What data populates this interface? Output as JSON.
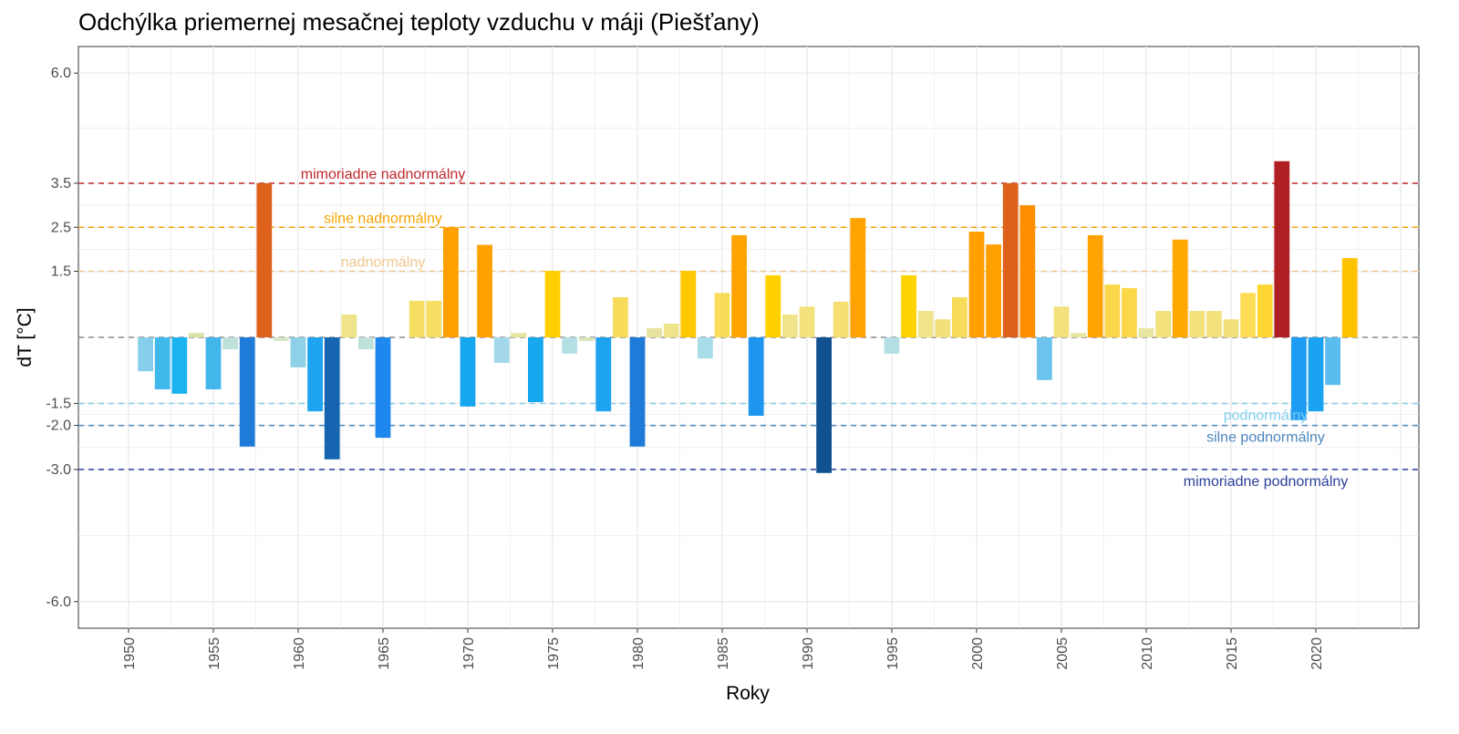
{
  "chart_data": {
    "type": "bar",
    "title": "Odchýlka priemernej mesačnej teploty vzduchu v máji (Piešťany)",
    "xlabel": "Roky",
    "ylabel": "dT [°C]",
    "ylim": [
      -6.6,
      6.6
    ],
    "xlim": [
      1947,
      2026
    ],
    "grid": true,
    "y_ticks": [
      6.0,
      3.5,
      2.5,
      1.5,
      -1.5,
      -2.0,
      -3.0,
      -6.0
    ],
    "y_tick_labels": [
      "6.0",
      "3.5",
      "2.5",
      "1.5",
      "-1.5",
      "-2.0",
      "-3.0",
      "-6.0"
    ],
    "x_ticks": [
      1950,
      1955,
      1960,
      1965,
      1970,
      1975,
      1980,
      1985,
      1990,
      1995,
      2000,
      2005,
      2010,
      2015,
      2020
    ],
    "x_tick_labels": [
      "1950",
      "1955",
      "1960",
      "1965",
      "1970",
      "1975",
      "1980",
      "1985",
      "1990",
      "1995",
      "2000",
      "2005",
      "2010",
      "2015",
      "2020"
    ],
    "thresholds": [
      {
        "value": 3.5,
        "label": "mimoriadne nadnormálny",
        "color": "#c0272d"
      },
      {
        "value": 2.5,
        "label": "silne nadnormálny",
        "color": "#f5a300"
      },
      {
        "value": 1.5,
        "label": "nadnormálny",
        "color": "#f0c890"
      },
      {
        "value": 0,
        "label": "",
        "color": "#888888"
      },
      {
        "value": -1.5,
        "label": "podnormálny",
        "color": "#7fcdee"
      },
      {
        "value": -2.0,
        "label": "silne podnormálny",
        "color": "#4a86be"
      },
      {
        "value": -3.0,
        "label": "mimoriadne podnormálny",
        "color": "#2a3f9a"
      }
    ],
    "x": [
      1951,
      1952,
      1953,
      1954,
      1955,
      1956,
      1957,
      1958,
      1959,
      1960,
      1961,
      1962,
      1963,
      1964,
      1965,
      1967,
      1968,
      1969,
      1970,
      1971,
      1972,
      1973,
      1974,
      1975,
      1976,
      1977,
      1978,
      1979,
      1980,
      1981,
      1982,
      1983,
      1984,
      1985,
      1986,
      1987,
      1988,
      1989,
      1990,
      1991,
      1992,
      1993,
      1995,
      1996,
      1997,
      1998,
      1999,
      2000,
      2001,
      2002,
      2003,
      2004,
      2005,
      2006,
      2007,
      2008,
      2009,
      2010,
      2011,
      2012,
      2013,
      2014,
      2015,
      2016,
      2017,
      2018,
      2019,
      2020,
      2021,
      2022
    ],
    "values": [
      -0.77,
      -1.18,
      -1.28,
      0.1,
      -1.18,
      -0.27,
      -2.48,
      3.5,
      -0.08,
      -0.68,
      -1.68,
      -2.77,
      0.52,
      -0.27,
      -2.28,
      0.83,
      0.83,
      2.5,
      -1.57,
      2.1,
      -0.58,
      0.1,
      -1.47,
      1.51,
      -0.37,
      -0.08,
      -1.68,
      0.91,
      -2.48,
      0.21,
      0.31,
      1.51,
      -0.48,
      1.01,
      2.32,
      -1.78,
      1.41,
      0.52,
      0.7,
      -3.08,
      0.81,
      2.71,
      -0.37,
      1.41,
      0.6,
      0.41,
      0.91,
      2.4,
      2.11,
      3.5,
      3.0,
      -0.97,
      0.7,
      0.1,
      2.32,
      1.2,
      1.12,
      0.21,
      0.6,
      2.22,
      0.6,
      0.6,
      0.41,
      1.01,
      1.2,
      4.0,
      -1.88,
      -1.68,
      -1.08,
      1.8
    ],
    "colors": [
      "#87ceeb",
      "#3fb8ec",
      "#1ab3ef",
      "#d7e3a8",
      "#42b6ea",
      "#bfe1d9",
      "#1e7bd8",
      "#de611b",
      "#d3e5c2",
      "#8ed0e8",
      "#1da3f0",
      "#1565b1",
      "#efe48a",
      "#bfe1d9",
      "#1e88ef",
      "#f6de62",
      "#f6de62",
      "#ff9f00",
      "#17a7ee",
      "#ffa200",
      "#a3d7ea",
      "#e6e6a0",
      "#17a7ee",
      "#ffd000",
      "#b3e0e4",
      "#d7e3b8",
      "#1da3f0",
      "#f6dc5a",
      "#1e7bd8",
      "#e6e3a0",
      "#f0e48a",
      "#ffc800",
      "#a8dce8",
      "#f8dc5a",
      "#ffa400",
      "#1e96ef",
      "#ffd100",
      "#f0e48a",
      "#f3e17c",
      "#125191",
      "#f4df70",
      "#ffa300",
      "#b3dfe4",
      "#ffd400",
      "#f0e48a",
      "#f2e07a",
      "#f6dc5a",
      "#ffa000",
      "#ffa000",
      "#de611b",
      "#ff8f00",
      "#6cc4ee",
      "#f3e17c",
      "#e6e6a0",
      "#ffa300",
      "#fbd84a",
      "#fbd84a",
      "#e6e6a0",
      "#f3e17c",
      "#ffa800",
      "#f3e17c",
      "#f3e17c",
      "#f2e07a",
      "#fddc56",
      "#fed634",
      "#b02023",
      "#1e9cf2",
      "#1aa3f0",
      "#5abdee",
      "#ffc200"
    ]
  }
}
